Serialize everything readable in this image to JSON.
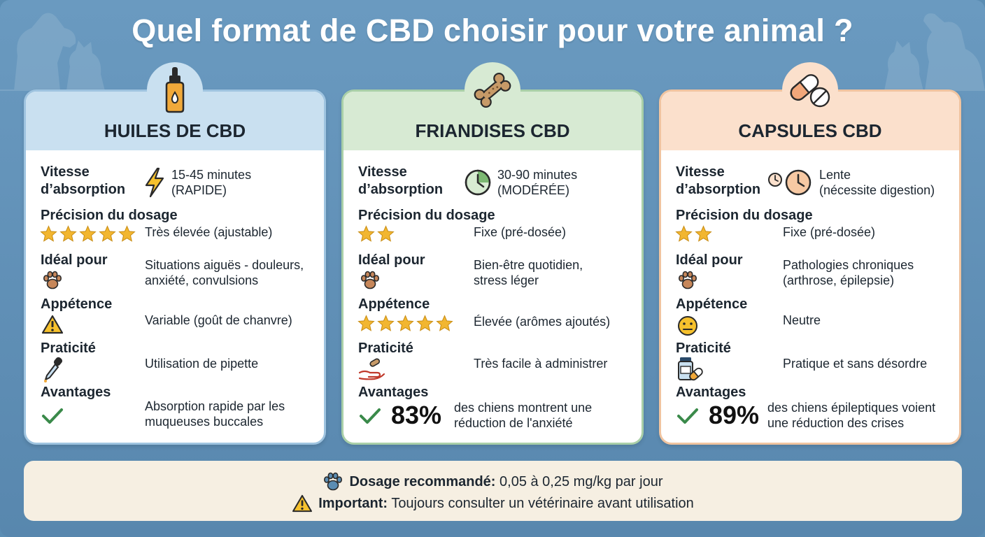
{
  "title": "Quel format de CBD choisir pour votre animal ?",
  "colors": {
    "background": "#5b8db3",
    "oil": "#c9e0f0",
    "treat": "#d7ead3",
    "capsule": "#fbe0cc",
    "star": "#f2b630",
    "check": "#3a8a4a"
  },
  "labels": {
    "speed_line1": "Vitesse",
    "speed_line2": "d’absorption",
    "precision": "Précision du dosage",
    "ideal": "Idéal pour",
    "palatability": "Appétence",
    "practicality": "Praticité",
    "advantages": "Avantages"
  },
  "cards": [
    {
      "title": "HUILES DE CBD",
      "badge_icon": "oil-dropper-bottle-icon",
      "speed_icon": "lightning-icon",
      "speed_line1": "15-45 minutes",
      "speed_line2": "(RAPIDE)",
      "precision_stars": 5,
      "precision_text": "Très élevée (ajustable)",
      "ideal_icon": "paw-icon",
      "ideal_line1": "Situations aiguës - douleurs,",
      "ideal_line2": "anxiété, convulsions",
      "palatability_icon": "warning-icon",
      "palatability_text": "Variable (goût de chanvre)",
      "practicality_icon": "pipette-icon",
      "practicality_text": "Utilisation de pipette",
      "advantages_icon": "check-icon",
      "advantages_line1": "Absorption rapide par les",
      "advantages_line2": "muqueuses buccales"
    },
    {
      "title": "FRIANDISES CBD",
      "badge_icon": "bone-icon",
      "speed_icon": "clock-icon",
      "speed_line1": "30-90 minutes",
      "speed_line2": "(MODÉRÉE)",
      "precision_stars": 2,
      "precision_text": "Fixe (pré-dosée)",
      "ideal_icon": "paw-icon",
      "ideal_line1": "Bien-être quotidien,",
      "ideal_line2": "stress léger",
      "palatability_stars": 5,
      "palatability_text": "Élevée (arômes ajoutés)",
      "practicality_icon": "hand-giving-icon",
      "practicality_text": "Très facile à administrer",
      "advantages_icon": "check-icon",
      "advantages_pct": "83%",
      "advantages_line1": "des chiens montrent une",
      "advantages_line2": "réduction de l'anxiété"
    },
    {
      "title": "CAPSULES CBD",
      "badge_icon": "capsule-pill-icon",
      "speed_icon": "clocks-icon",
      "speed_line1": "Lente",
      "speed_line2": "(nécessite digestion)",
      "precision_stars": 2,
      "precision_text": "Fixe (pré-dosée)",
      "ideal_icon": "paw-icon",
      "ideal_line1": "Pathologies chroniques",
      "ideal_line2": "(arthrose, épilepsie)",
      "palatability_icon": "neutral-face-icon",
      "palatability_text": "Neutre",
      "practicality_icon": "pill-bottle-icon",
      "practicality_text": "Pratique et sans désordre",
      "advantages_icon": "check-icon",
      "advantages_pct": "89%",
      "advantages_line1": "des chiens épileptiques voient",
      "advantages_line2": "une réduction des crises"
    }
  ],
  "footer": {
    "dosage_icon": "paw-icon",
    "dosage_label": "Dosage recommandé:",
    "dosage_text": "0,05 à 0,25 mg/kg par jour",
    "important_icon": "warning-icon",
    "important_label": "Important:",
    "important_text": "Toujours consulter un vétérinaire avant utilisation"
  }
}
